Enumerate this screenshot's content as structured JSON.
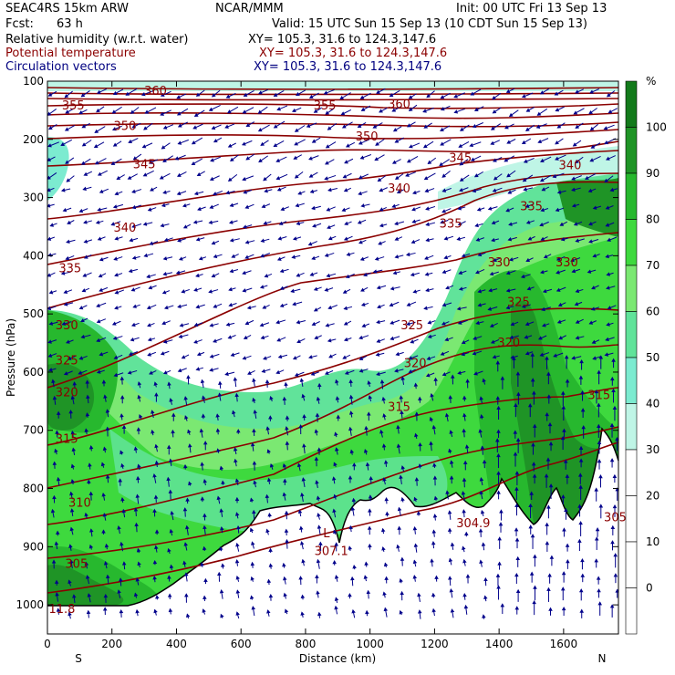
{
  "header": {
    "model": "SEAC4RS 15km ARW",
    "org": "NCAR/MMM",
    "init": "Init: 00 UTC Fri 13 Sep 13",
    "fcst_label": "Fcst:",
    "fcst_value": "63 h",
    "valid": "Valid: 15 UTC Sun 15 Sep 13 (10 CDT Sun 15 Sep 13)",
    "field1_name": "Relative humidity (w.r.t. water)",
    "field1_xy": "XY= 105.3, 31.6 to 124.3,147.6",
    "field2_name": "Potential temperature",
    "field2_xy": "XY= 105.3, 31.6 to 124.3,147.6",
    "field3_name": "Circulation vectors",
    "field3_xy": "XY= 105.3, 31.6 to 124.3,147.6"
  },
  "colors": {
    "rh_scale": [
      "#ffffff",
      "#ffffff",
      "#ffffff",
      "#ffffff",
      "#bff5e6",
      "#7cebd0",
      "#61e39a",
      "#7be872",
      "#3ed93e",
      "#27b82e",
      "#1f9426",
      "#137a1b"
    ],
    "theta_contour": "#8b0000",
    "vectors": "#00008b"
  },
  "chart_data": {
    "type": "cross-section",
    "xlabel": "Distance (km)",
    "ylabel": "Pressure (hPa)",
    "x_ticks": [
      "0",
      "200",
      "400",
      "600",
      "800",
      "1000",
      "1200",
      "1400",
      "1600"
    ],
    "xlim": [
      0,
      1770
    ],
    "y_ticks": [
      "100",
      "200",
      "300",
      "400",
      "500",
      "600",
      "700",
      "800",
      "900",
      "1000"
    ],
    "ylim": [
      100,
      1050
    ],
    "x_end_left": "S",
    "x_end_right": "N",
    "colorbar_unit": "%",
    "colorbar_labels": [
      "100",
      "90",
      "80",
      "70",
      "60",
      "50",
      "40",
      "30",
      "20",
      "10",
      "0"
    ],
    "theta_labels": [
      {
        "text": "360",
        "x": 335,
        "p": 122
      },
      {
        "text": "355",
        "x": 80,
        "p": 147
      },
      {
        "text": "355",
        "x": 860,
        "p": 147
      },
      {
        "text": "360",
        "x": 1090,
        "p": 145
      },
      {
        "text": "350",
        "x": 240,
        "p": 182
      },
      {
        "text": "350",
        "x": 990,
        "p": 200
      },
      {
        "text": "345",
        "x": 300,
        "p": 248
      },
      {
        "text": "345",
        "x": 1280,
        "p": 237
      },
      {
        "text": "340",
        "x": 1620,
        "p": 250
      },
      {
        "text": "340",
        "x": 1090,
        "p": 290
      },
      {
        "text": "335",
        "x": 1500,
        "p": 320
      },
      {
        "text": "335",
        "x": 1250,
        "p": 350
      },
      {
        "text": "340",
        "x": 240,
        "p": 357
      },
      {
        "text": "330",
        "x": 1400,
        "p": 417
      },
      {
        "text": "330",
        "x": 1610,
        "p": 417
      },
      {
        "text": "335",
        "x": 70,
        "p": 427
      },
      {
        "text": "325",
        "x": 1460,
        "p": 485
      },
      {
        "text": "330",
        "x": 60,
        "p": 525
      },
      {
        "text": "325",
        "x": 1130,
        "p": 525
      },
      {
        "text": "320",
        "x": 1430,
        "p": 555
      },
      {
        "text": "325",
        "x": 60,
        "p": 585
      },
      {
        "text": "320",
        "x": 1140,
        "p": 590
      },
      {
        "text": "320",
        "x": 60,
        "p": 640
      },
      {
        "text": "315",
        "x": 1090,
        "p": 665
      },
      {
        "text": "315",
        "x": 1710,
        "p": 645
      },
      {
        "text": "315",
        "x": 60,
        "p": 720
      },
      {
        "text": "310",
        "x": 100,
        "p": 830
      },
      {
        "text": "304.9",
        "x": 1320,
        "p": 865
      },
      {
        "text": "305",
        "x": 1760,
        "p": 855
      },
      {
        "text": "305",
        "x": 90,
        "p": 935
      },
      {
        "text": "307.1",
        "x": 880,
        "p": 913
      },
      {
        "text": "L",
        "x": 865,
        "p": 882
      },
      {
        "text": "11.8",
        "x": 45,
        "p": 1012
      }
    ]
  }
}
